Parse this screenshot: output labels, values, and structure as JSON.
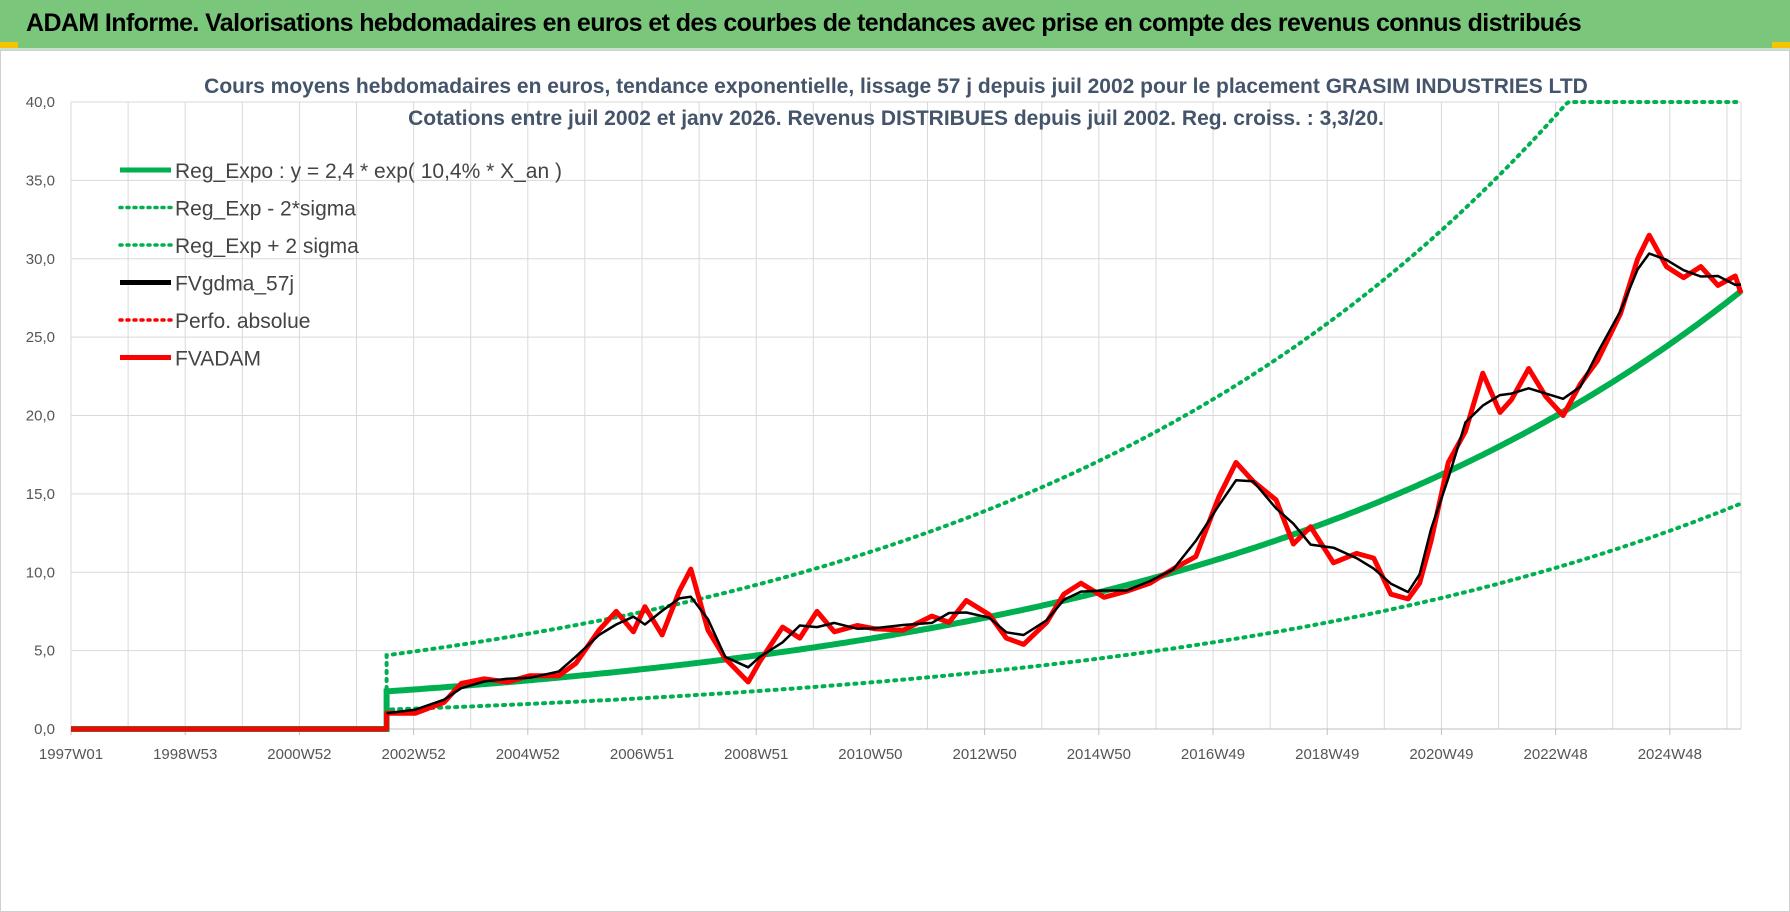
{
  "banner": {
    "title": "ADAM Informe. Valorisations hebdomadaires en euros et des courbes de tendances avec prise en compte des revenus connus distribués"
  },
  "colors": {
    "banner_bg": "#7ac77c",
    "green": "#00b050",
    "red": "#ff0000",
    "black": "#000000",
    "grid": "#d9d9d9"
  },
  "chart_data": {
    "type": "line",
    "title_lines": [
      "Cours moyens hebdomadaires en euros, tendance exponentielle, lissage 57 j depuis juil 2002 pour le placement GRASIM INDUSTRIES LTD",
      "Cotations entre juil 2002 et janv 2026. Revenus DISTRIBUES depuis juil 2002. Reg. croiss. : 3,3/20."
    ],
    "x_ticks": [
      "1997W01",
      "1998W53",
      "2000W52",
      "2002W52",
      "2004W52",
      "2006W51",
      "2008W51",
      "2010W50",
      "2012W50",
      "2014W50",
      "2016W49",
      "2018W49",
      "2020W49",
      "2022W48",
      "2024W48"
    ],
    "y_ticks": [
      "0,0",
      "5,0",
      "10,0",
      "15,0",
      "20,0",
      "25,0",
      "30,0",
      "35,0",
      "40,0"
    ],
    "xlim": [
      1997.0,
      2026.1
    ],
    "ylim": [
      0,
      40
    ],
    "legend": [
      {
        "label": "Reg_Expo : y = 2,4 * exp( 10,4% *  X_an )",
        "color": "#00b050",
        "style": "solid"
      },
      {
        "label": "Reg_Exp - 2*sigma",
        "color": "#00b050",
        "style": "dotted"
      },
      {
        "label": "Reg_Exp + 2 sigma",
        "color": "#00b050",
        "style": "dotted"
      },
      {
        "label": "FVgdma_57j",
        "color": "#000000",
        "style": "solid"
      },
      {
        "label": "Perfo. absolue",
        "color": "#ff0000",
        "style": "dotted"
      },
      {
        "label": "FVADAM",
        "color": "#ff0000",
        "style": "solid"
      }
    ],
    "series": {
      "reg_expo": {
        "name": "Reg_Expo",
        "start": 2002.5,
        "end": 2026.1,
        "a": 2.4,
        "rate": 0.104,
        "pre_value": 0
      },
      "reg_minus": {
        "name": "Reg_Exp - 2*sigma",
        "start": 2002.5,
        "end": 2026.1,
        "factor": 0.515
      },
      "reg_plus": {
        "name": "Reg_Exp + 2 sigma",
        "start": 2002.5,
        "end": 2026.1,
        "factor": 1.96,
        "cap": 40
      },
      "fvadam": {
        "name": "FVADAM",
        "pre": {
          "x": [
            1997.0,
            2002.5
          ],
          "y": [
            0,
            0
          ]
        },
        "x": [
          2002.5,
          2003.0,
          2003.5,
          2003.8,
          2004.2,
          2004.6,
          2005.0,
          2005.5,
          2005.8,
          2006.2,
          2006.5,
          2006.8,
          2007.0,
          2007.3,
          2007.6,
          2007.8,
          2008.1,
          2008.4,
          2008.8,
          2009.0,
          2009.4,
          2009.7,
          2010.0,
          2010.3,
          2010.7,
          2011.0,
          2011.5,
          2012.0,
          2012.3,
          2012.6,
          2013.0,
          2013.3,
          2013.6,
          2014.0,
          2014.3,
          2014.6,
          2015.0,
          2015.4,
          2015.8,
          2016.2,
          2016.6,
          2017.0,
          2017.3,
          2017.6,
          2018.0,
          2018.3,
          2018.6,
          2019.0,
          2019.4,
          2019.7,
          2020.0,
          2020.3,
          2020.5,
          2020.7,
          2021.0,
          2021.3,
          2021.6,
          2021.9,
          2022.1,
          2022.4,
          2022.7,
          2023.0,
          2023.3,
          2023.6,
          2024.0,
          2024.3,
          2024.5,
          2024.8,
          2025.1,
          2025.4,
          2025.7,
          2026.0,
          2026.1
        ],
        "y": [
          1.0,
          1.0,
          1.7,
          2.9,
          3.2,
          3.0,
          3.4,
          3.4,
          4.2,
          6.3,
          7.5,
          6.2,
          7.8,
          6.0,
          8.8,
          10.2,
          6.3,
          4.5,
          3.0,
          4.3,
          6.5,
          5.8,
          7.5,
          6.2,
          6.6,
          6.4,
          6.3,
          7.2,
          6.8,
          8.2,
          7.3,
          5.8,
          5.4,
          6.8,
          8.6,
          9.3,
          8.4,
          8.8,
          9.3,
          10.2,
          11.0,
          14.8,
          17.0,
          15.8,
          14.6,
          11.8,
          12.9,
          10.6,
          11.2,
          10.9,
          8.6,
          8.3,
          9.3,
          12.0,
          17.0,
          19.0,
          22.7,
          20.2,
          21.0,
          23.0,
          21.2,
          20.0,
          22.0,
          23.5,
          26.5,
          30.0,
          31.5,
          29.5,
          28.8,
          29.5,
          28.3,
          28.9,
          27.8
        ]
      },
      "fvgdma": {
        "name": "FVgdma_57j",
        "smoothing_window": 3
      }
    }
  }
}
